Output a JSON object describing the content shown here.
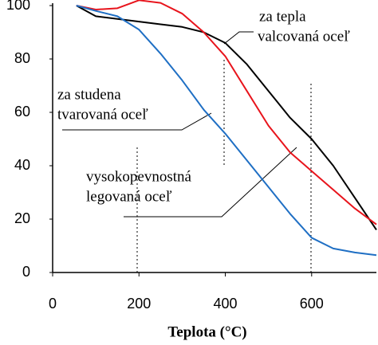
{
  "chart_data": {
    "type": "line",
    "x_label": "Teplota (°C)",
    "x": [
      55,
      100,
      150,
      200,
      250,
      300,
      350,
      400,
      450,
      500,
      550,
      600,
      650,
      700,
      750
    ],
    "series": [
      {
        "color": "#000000",
        "values": [
          100,
          96,
          95,
          94,
          93,
          92,
          90,
          86,
          78,
          68,
          58,
          50,
          40,
          28,
          16
        ]
      },
      {
        "color": "#e8141c",
        "values": [
          100,
          98.5,
          99,
          102,
          101,
          97,
          90,
          81,
          68,
          55,
          45,
          38,
          31,
          24,
          18
        ]
      },
      {
        "color": "#1f6fc4",
        "values": [
          100,
          98,
          96,
          91,
          82,
          72,
          61,
          52,
          42,
          32,
          22,
          13,
          9,
          7.5,
          6.5
        ]
      }
    ],
    "annotations": [
      {
        "lines": [
          "za tepla",
          "valcovaná oceľ"
        ]
      },
      {
        "lines": [
          "za studena",
          "tvarovaná oceľ"
        ]
      },
      {
        "lines": [
          "vysokopevnostná",
          "legovaná oceľ"
        ]
      }
    ],
    "xlim": [
      0,
      750
    ],
    "ylim": [
      0,
      100
    ],
    "xticks": [
      0,
      200,
      400,
      600
    ],
    "yticks": [
      0,
      20,
      40,
      60,
      80,
      100
    ]
  }
}
